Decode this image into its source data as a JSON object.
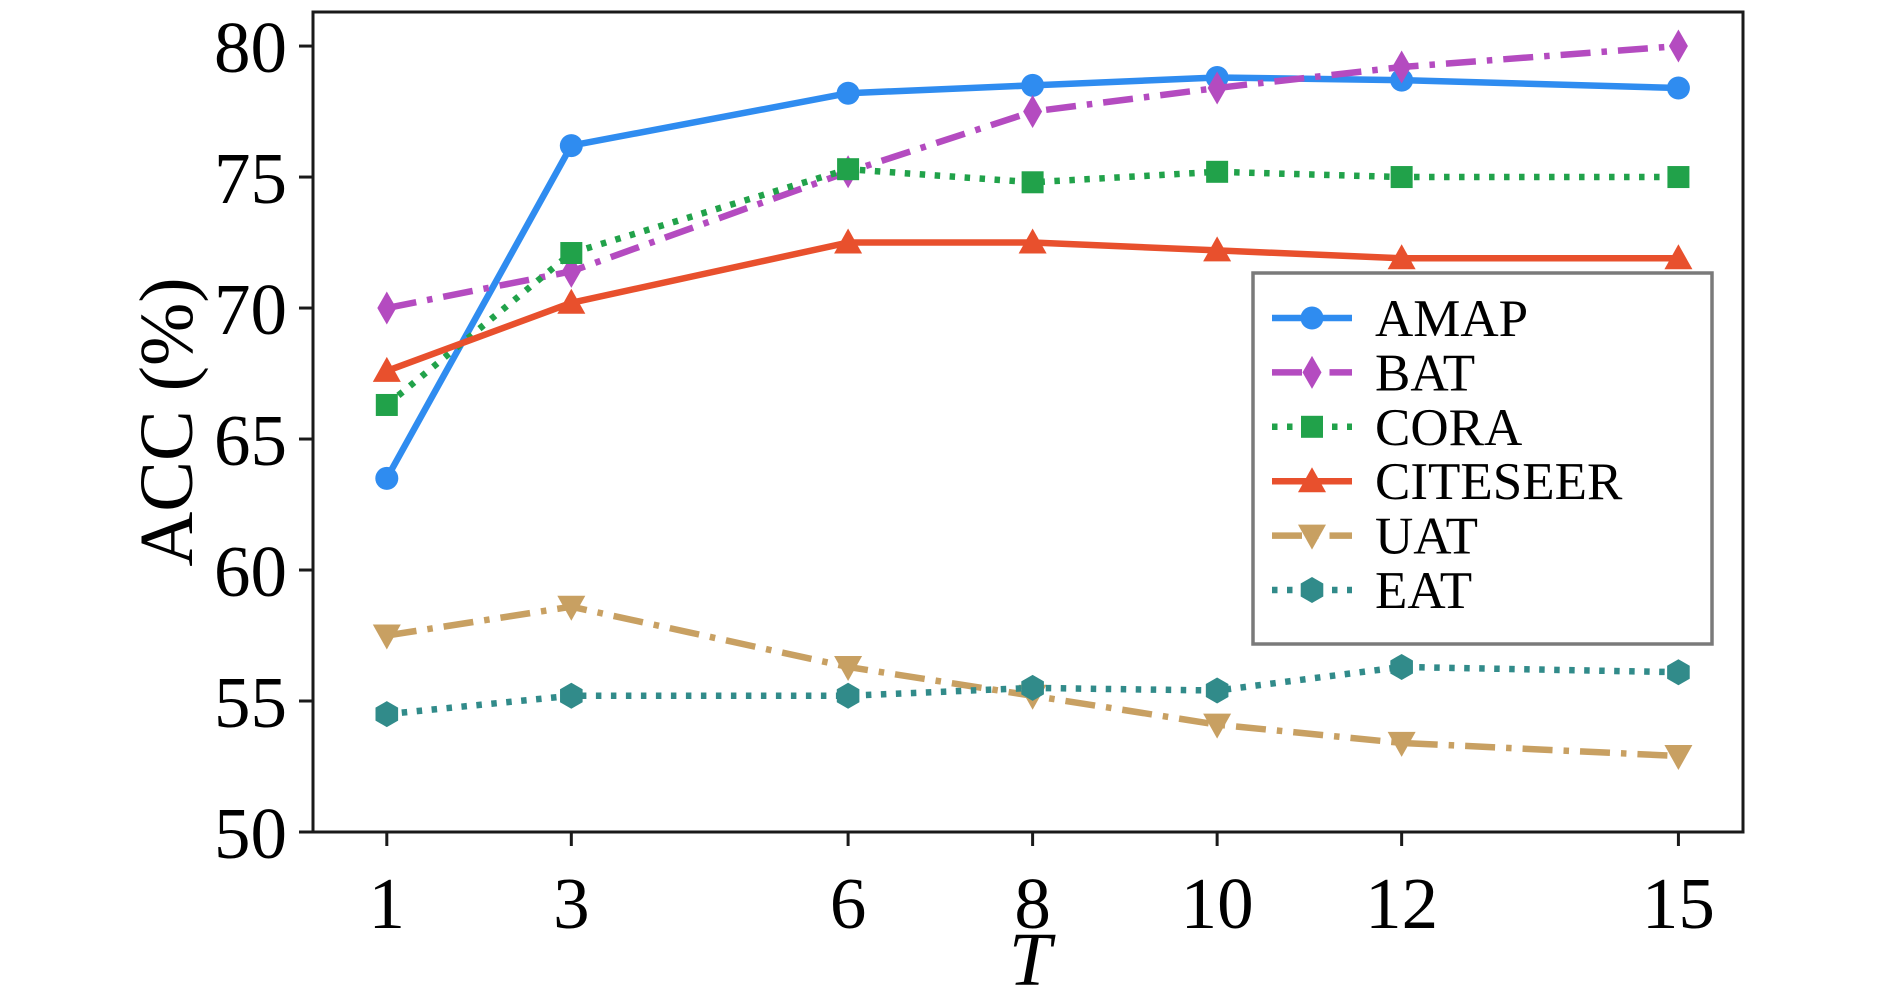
{
  "figure": {
    "background": "#ffffff",
    "spine_color": "#1a1a1a",
    "legend_border_color": "#7a7a7a"
  },
  "chart_data": {
    "type": "line",
    "title": "",
    "xlabel": "T",
    "ylabel": "ACC (%)",
    "x": [
      1,
      3,
      6,
      8,
      10,
      12,
      15
    ],
    "x_tick_labels": [
      "1",
      "3",
      "6",
      "8",
      "10",
      "12",
      "15"
    ],
    "y_tick_values": [
      50,
      55,
      60,
      65,
      70,
      75,
      80
    ],
    "y_tick_labels": [
      "50",
      "55",
      "60",
      "65",
      "70",
      "75",
      "80"
    ],
    "xlim": [
      0.2,
      15.7
    ],
    "ylim": [
      50,
      81.3
    ],
    "grid": false,
    "legend_position": "center right",
    "legend_entries": [
      "AMAP",
      "BAT",
      "CORA",
      "CITESEER",
      "UAT",
      "EAT"
    ],
    "series": [
      {
        "name": "AMAP",
        "color": "#2f8cf0",
        "linestyle": "solid",
        "marker": "circle",
        "values": [
          63.5,
          76.2,
          78.2,
          78.5,
          78.8,
          78.7,
          78.4
        ]
      },
      {
        "name": "BAT",
        "color": "#b44bc0",
        "linestyle": "dashdot",
        "marker": "thin-diamond",
        "values": [
          70.0,
          71.4,
          75.2,
          77.5,
          78.4,
          79.2,
          80.0
        ]
      },
      {
        "name": "CORA",
        "color": "#21a24a",
        "linestyle": "dotted",
        "marker": "square",
        "values": [
          66.3,
          72.1,
          75.3,
          74.8,
          75.2,
          75.0,
          75.0
        ]
      },
      {
        "name": "CITESEER",
        "color": "#e8502d",
        "linestyle": "solid",
        "marker": "triangle-up",
        "values": [
          67.6,
          70.2,
          72.5,
          72.5,
          72.2,
          71.9,
          71.9
        ]
      },
      {
        "name": "UAT",
        "color": "#c8a062",
        "linestyle": "dashdot",
        "marker": "triangle-down",
        "values": [
          57.5,
          58.6,
          56.3,
          55.2,
          54.1,
          53.4,
          52.9
        ]
      },
      {
        "name": "EAT",
        "color": "#318b8a",
        "linestyle": "dotted",
        "marker": "hexagon",
        "values": [
          54.5,
          55.2,
          55.2,
          55.5,
          55.4,
          56.3,
          56.1
        ]
      }
    ]
  }
}
